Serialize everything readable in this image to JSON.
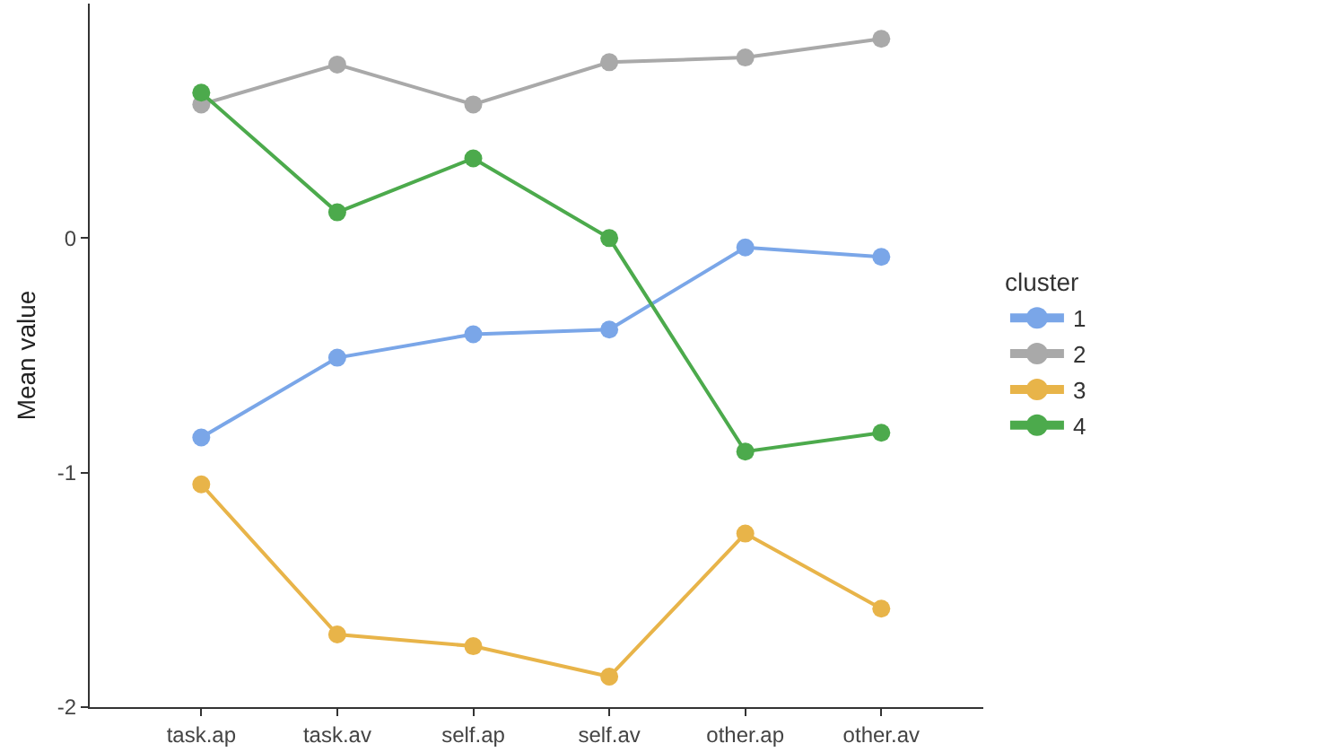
{
  "chart_data": {
    "type": "line",
    "ylabel": "Mean value",
    "legend_title": "cluster",
    "legend": "right",
    "grid": false,
    "marker": "circle",
    "line_style": "solid",
    "categories": [
      "task.ap",
      "task.av",
      "self.ap",
      "self.av",
      "other.ap",
      "other.av"
    ],
    "ylim": [
      -2,
      1
    ],
    "yticks": [
      -2,
      -1,
      0
    ],
    "series": [
      {
        "name": "1",
        "color": "#7aa6e8",
        "values": [
          -0.85,
          -0.51,
          -0.41,
          -0.39,
          -0.04,
          -0.08
        ]
      },
      {
        "name": "2",
        "color": "#a9a9a9",
        "values": [
          0.57,
          0.74,
          0.57,
          0.75,
          0.77,
          0.85
        ]
      },
      {
        "name": "3",
        "color": "#e8b449",
        "values": [
          -1.05,
          -1.69,
          -1.74,
          -1.87,
          -1.26,
          -1.58
        ]
      },
      {
        "name": "4",
        "color": "#4caa4c",
        "values": [
          0.62,
          0.11,
          0.34,
          0.0,
          -0.91,
          -0.83
        ]
      }
    ]
  }
}
